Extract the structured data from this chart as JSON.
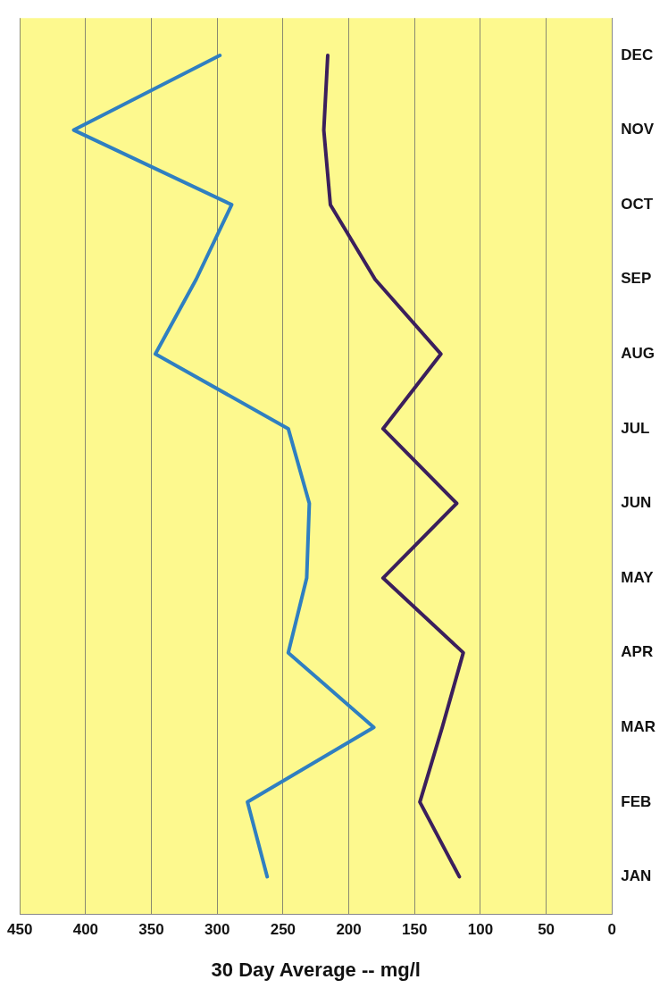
{
  "chart_data": {
    "type": "line",
    "orientation": "horizontal",
    "xlabel": "30 Day Average -- mg/l",
    "categories": [
      "DEC",
      "NOV",
      "OCT",
      "SEP",
      "AUG",
      "JUL",
      "JUN",
      "MAY",
      "APR",
      "MAR",
      "FEB",
      "JAN"
    ],
    "series": [
      {
        "color": "#2f7fc1",
        "values": [
          298,
          409,
          289,
          316,
          347,
          246,
          230,
          232,
          246,
          181,
          277,
          262
        ]
      },
      {
        "color": "#3b1f5c",
        "values": [
          216,
          219,
          214,
          180,
          130,
          174,
          118,
          174,
          113,
          129,
          146,
          116
        ]
      }
    ],
    "xlim": [
      450,
      0
    ],
    "xticks": [
      450,
      400,
      350,
      300,
      250,
      200,
      150,
      100,
      50,
      0
    ],
    "grid": "x",
    "legend": false,
    "marker": "none",
    "line_style": "solid"
  }
}
